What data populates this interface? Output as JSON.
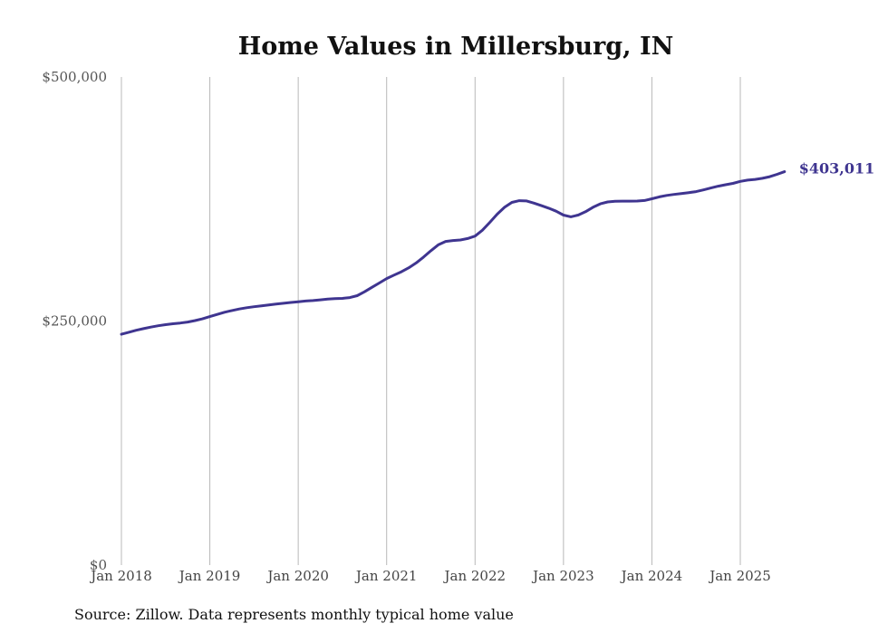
{
  "chart_data": {
    "type": "line",
    "title": "Home Values in Millersburg, IN",
    "source": "Source: Zillow. Data represents monthly typical home value",
    "end_label": "$403,011",
    "line_color": "#3f3590",
    "ylim": [
      0,
      500000
    ],
    "y_ticks": [
      {
        "value": 500000,
        "label": "$500,000"
      },
      {
        "value": 250000,
        "label": "$250,000"
      },
      {
        "value": 0,
        "label": "$0"
      }
    ],
    "x_ticks": [
      {
        "date": "2018-01",
        "label": "Jan 2018"
      },
      {
        "date": "2019-01",
        "label": "Jan 2019"
      },
      {
        "date": "2020-01",
        "label": "Jan 2020"
      },
      {
        "date": "2021-01",
        "label": "Jan 2021"
      },
      {
        "date": "2022-01",
        "label": "Jan 2022"
      },
      {
        "date": "2023-01",
        "label": "Jan 2023"
      },
      {
        "date": "2024-01",
        "label": "Jan 2024"
      },
      {
        "date": "2025-01",
        "label": "Jan 2025"
      }
    ],
    "grid": "vertical",
    "series": [
      {
        "points": [
          [
            "2018-01",
            236500
          ],
          [
            "2018-02",
            238500
          ],
          [
            "2018-03",
            240500
          ],
          [
            "2018-04",
            242200
          ],
          [
            "2018-05",
            243800
          ],
          [
            "2018-06",
            245200
          ],
          [
            "2018-07",
            246300
          ],
          [
            "2018-08",
            247200
          ],
          [
            "2018-09",
            248000
          ],
          [
            "2018-10",
            249000
          ],
          [
            "2018-11",
            250500
          ],
          [
            "2018-12",
            252200
          ],
          [
            "2019-01",
            254500
          ],
          [
            "2019-02",
            256800
          ],
          [
            "2019-03",
            259000
          ],
          [
            "2019-04",
            260800
          ],
          [
            "2019-05",
            262300
          ],
          [
            "2019-06",
            263600
          ],
          [
            "2019-07",
            264700
          ],
          [
            "2019-08",
            265600
          ],
          [
            "2019-09",
            266500
          ],
          [
            "2019-10",
            267400
          ],
          [
            "2019-11",
            268200
          ],
          [
            "2019-12",
            269000
          ],
          [
            "2020-01",
            269800
          ],
          [
            "2020-02",
            270500
          ],
          [
            "2020-03",
            271000
          ],
          [
            "2020-04",
            271700
          ],
          [
            "2020-05",
            272500
          ],
          [
            "2020-06",
            273000
          ],
          [
            "2020-07",
            273200
          ],
          [
            "2020-08",
            274000
          ],
          [
            "2020-09",
            276000
          ],
          [
            "2020-10",
            280000
          ],
          [
            "2020-11",
            284500
          ],
          [
            "2020-12",
            289000
          ],
          [
            "2021-01",
            293500
          ],
          [
            "2021-02",
            297000
          ],
          [
            "2021-03",
            300500
          ],
          [
            "2021-04",
            304500
          ],
          [
            "2021-05",
            309500
          ],
          [
            "2021-06",
            315500
          ],
          [
            "2021-07",
            322000
          ],
          [
            "2021-08",
            328000
          ],
          [
            "2021-09",
            331500
          ],
          [
            "2021-10",
            332500
          ],
          [
            "2021-11",
            333000
          ],
          [
            "2021-12",
            334500
          ],
          [
            "2022-01",
            337000
          ],
          [
            "2022-02",
            343000
          ],
          [
            "2022-03",
            351000
          ],
          [
            "2022-04",
            359500
          ],
          [
            "2022-05",
            366500
          ],
          [
            "2022-06",
            371500
          ],
          [
            "2022-07",
            373300
          ],
          [
            "2022-08",
            373000
          ],
          [
            "2022-09",
            370800
          ],
          [
            "2022-10",
            368200
          ],
          [
            "2022-11",
            365600
          ],
          [
            "2022-12",
            362500
          ],
          [
            "2023-01",
            358500
          ],
          [
            "2023-02",
            356800
          ],
          [
            "2023-03",
            358500
          ],
          [
            "2023-04",
            362000
          ],
          [
            "2023-05",
            366500
          ],
          [
            "2023-06",
            370000
          ],
          [
            "2023-07",
            372000
          ],
          [
            "2023-08",
            372600
          ],
          [
            "2023-09",
            372800
          ],
          [
            "2023-10",
            372800
          ],
          [
            "2023-11",
            372900
          ],
          [
            "2023-12",
            373500
          ],
          [
            "2024-01",
            375200
          ],
          [
            "2024-02",
            377200
          ],
          [
            "2024-03",
            378700
          ],
          [
            "2024-04",
            379700
          ],
          [
            "2024-05",
            380600
          ],
          [
            "2024-06",
            381500
          ],
          [
            "2024-07",
            382600
          ],
          [
            "2024-08",
            384300
          ],
          [
            "2024-09",
            386300
          ],
          [
            "2024-10",
            388100
          ],
          [
            "2024-11",
            389600
          ],
          [
            "2024-12",
            391000
          ],
          [
            "2025-01",
            393000
          ],
          [
            "2025-02",
            394300
          ],
          [
            "2025-03",
            395100
          ],
          [
            "2025-04",
            396200
          ],
          [
            "2025-05",
            397900
          ],
          [
            "2025-06",
            400300
          ],
          [
            "2025-07",
            403011
          ]
        ]
      }
    ]
  }
}
